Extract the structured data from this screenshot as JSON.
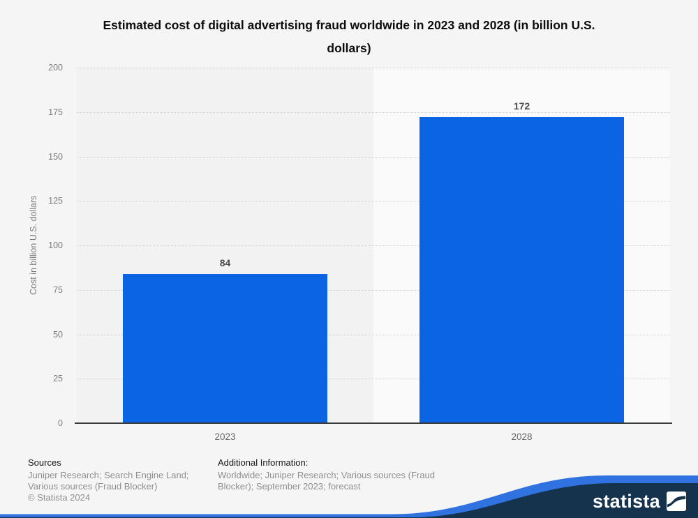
{
  "title": "Estimated cost of digital advertising fraud worldwide in 2023 and 2028 (in billion U.S. dollars)",
  "chart_data": {
    "type": "bar",
    "title": "Estimated cost of digital advertising fraud worldwide in 2023 and 2028 (in billion U.S. dollars)",
    "categories": [
      "2023",
      "2028"
    ],
    "values": [
      84,
      172
    ],
    "value_labels": [
      "84",
      "172"
    ],
    "xlabel": "",
    "ylabel": "Cost in billion U.S. dollars",
    "ylim": [
      0,
      200
    ],
    "yticks": [
      0,
      25,
      50,
      75,
      100,
      125,
      150,
      175,
      200
    ],
    "grid": "horizontal-dotted",
    "legend": "none",
    "bar_color": "#0b64e4",
    "band_colors": [
      "#f2f2f3",
      "#fafafa"
    ]
  },
  "footer": {
    "sources_heading": "Sources",
    "sources_text": "Juniper Research; Search Engine Land; Various sources (Fraud Blocker)",
    "copyright": "© Statista 2024",
    "additional_heading": "Additional Information:",
    "additional_text": "Worldwide; Juniper Research; Various sources (Fraud Blocker); September 2023; forecast"
  },
  "branding": {
    "logo_text": "statista",
    "wave_blue": "#2f72e0",
    "navy": "#15334c"
  }
}
